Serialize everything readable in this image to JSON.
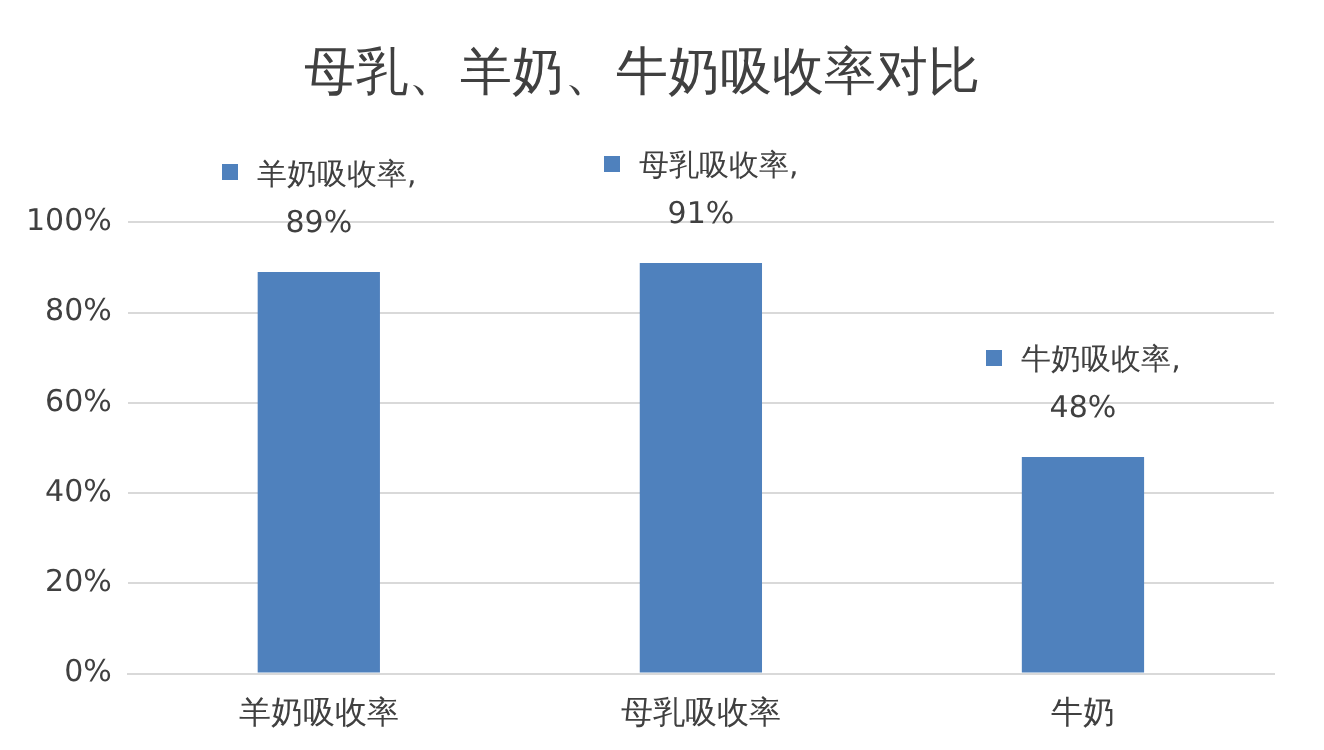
{
  "chart_data": {
    "type": "bar",
    "title": "母乳、羊奶、牛奶吸收率对比",
    "categories": [
      "羊奶吸收率",
      "母乳吸收率",
      "牛奶"
    ],
    "values": [
      89,
      91,
      48
    ],
    "color": "#4f81bd",
    "value_labels": [
      "羊奶吸收率, 89%",
      "母乳吸收率, 91%",
      "牛奶吸收率, 48%"
    ],
    "ylim": [
      0,
      100
    ],
    "yticks": [
      {
        "value": 0,
        "label": "0%"
      },
      {
        "value": 20,
        "label": "20%"
      },
      {
        "value": 40,
        "label": "40%"
      },
      {
        "value": 60,
        "label": "60%"
      },
      {
        "value": 80,
        "label": "80%"
      },
      {
        "value": 100,
        "label": "100%"
      }
    ],
    "grid": "y",
    "legend": false
  }
}
